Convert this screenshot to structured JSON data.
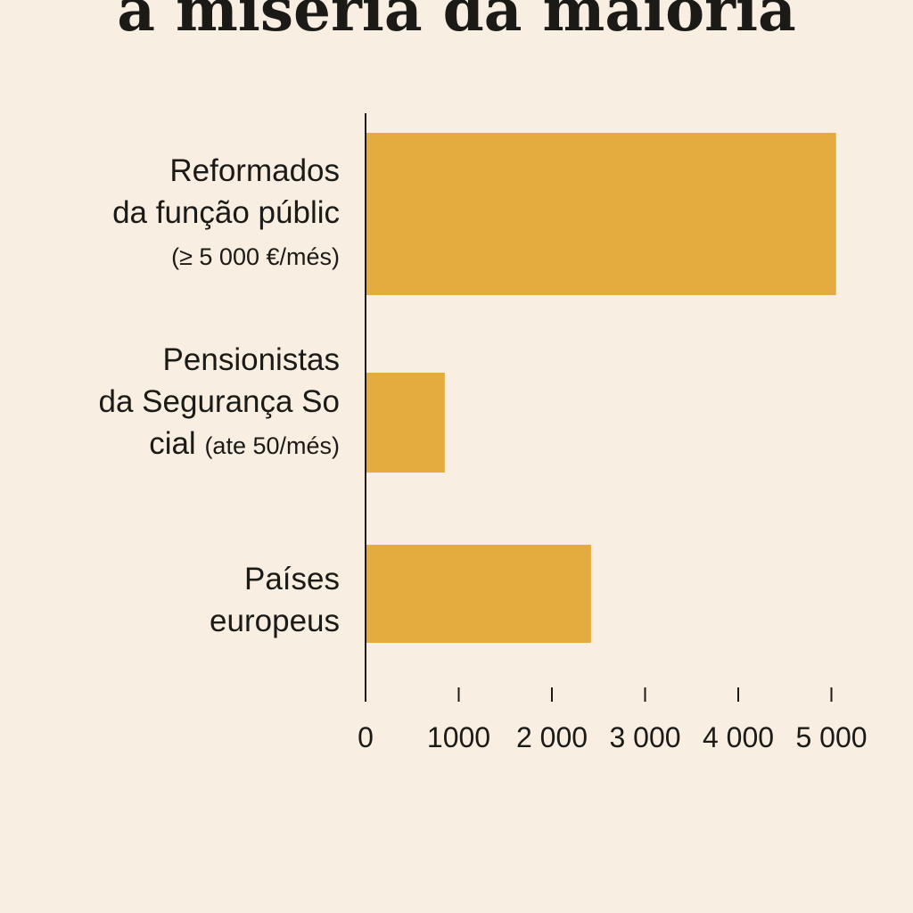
{
  "chart_data": {
    "type": "bar",
    "orientation": "horizontal",
    "title": "a miséria da maioria",
    "xlabel": "",
    "ylabel": "",
    "xlim": [
      0,
      5000
    ],
    "grid": false,
    "bar_color": "#e4ab3f",
    "categories": [
      {
        "lines": [
          {
            "text": "Reformados",
            "small": ""
          },
          {
            "text": "da função públic",
            "small": ""
          },
          {
            "text": "",
            "small": "(≥ 5 000 €/més)"
          }
        ]
      },
      {
        "lines": [
          {
            "text": "Pensionistas",
            "small": ""
          },
          {
            "text": "da Segurança So",
            "small": ""
          },
          {
            "text": "cial ",
            "small": "(ate 50/més)"
          }
        ]
      },
      {
        "lines": [
          {
            "text": "Países",
            "small": ""
          },
          {
            "text": "europeus",
            "small": ""
          }
        ]
      }
    ],
    "values": [
      5050,
      850,
      2420
    ],
    "ticks": [
      0,
      1000,
      2000,
      3000,
      4000,
      5000
    ],
    "tick_labels": [
      "0",
      "1000",
      "2 000",
      "3 000",
      "4 000",
      "5 000"
    ]
  }
}
